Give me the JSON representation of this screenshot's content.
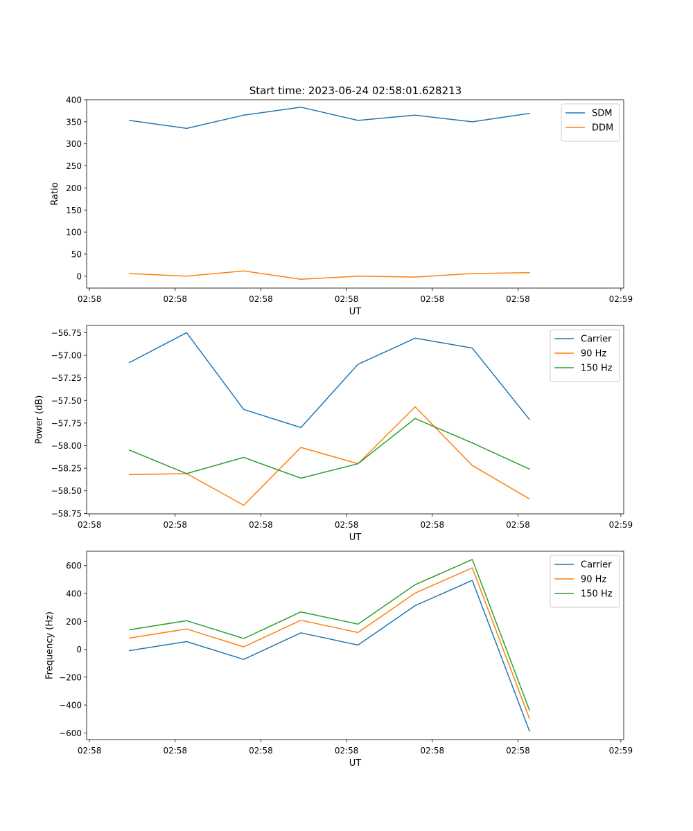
{
  "figure": {
    "title": "Start time: 2023-06-24 02:58:01.628213"
  },
  "chart_data": [
    {
      "type": "line",
      "title": "Start time: 2023-06-24 02:58:01.628213",
      "xlabel": "UT",
      "ylabel": "Ratio",
      "x": [
        0,
        1,
        2,
        3,
        4,
        5,
        6,
        7
      ],
      "xlim": [
        -0.75,
        8.65
      ],
      "x_tick_labels": [
        "02:58",
        "02:58",
        "02:58",
        "02:58",
        "02:58",
        "02:58",
        "02:59"
      ],
      "ylim": [
        -27,
        400
      ],
      "y_ticks": [
        0,
        50,
        100,
        150,
        200,
        250,
        300,
        350,
        400
      ],
      "y_tick_labels": [
        "0",
        "50",
        "100",
        "150",
        "200",
        "250",
        "300",
        "350",
        "400"
      ],
      "legend_position": "top-right",
      "grid": false,
      "series": [
        {
          "name": "SDM",
          "color": "#1f77b4",
          "values": [
            353,
            335,
            365,
            383,
            353,
            365,
            350,
            369
          ]
        },
        {
          "name": "DDM",
          "color": "#ff7f0e",
          "values": [
            6,
            0,
            12,
            -7,
            0,
            -2,
            6,
            8
          ]
        }
      ]
    },
    {
      "type": "line",
      "title": "",
      "xlabel": "UT",
      "ylabel": "Power (dB)",
      "x": [
        0,
        1,
        2,
        3,
        4,
        5,
        6,
        7
      ],
      "xlim": [
        -0.75,
        8.65
      ],
      "x_tick_labels": [
        "02:58",
        "02:58",
        "02:58",
        "02:58",
        "02:58",
        "02:58",
        "02:59"
      ],
      "ylim": [
        -58.755,
        -56.67
      ],
      "y_ticks": [
        -58.75,
        -58.5,
        -58.25,
        -58.0,
        -57.75,
        -57.5,
        -57.25,
        -57.0,
        -56.75
      ],
      "y_tick_labels": [
        "−58.75",
        "−58.50",
        "−58.25",
        "−58.00",
        "−57.75",
        "−57.50",
        "−57.25",
        "−57.00",
        "−56.75"
      ],
      "legend_position": "top-right",
      "grid": false,
      "series": [
        {
          "name": "Carrier",
          "color": "#1f77b4",
          "values": [
            -57.08,
            -56.75,
            -57.6,
            -57.8,
            -57.1,
            -56.81,
            -56.92,
            -57.71
          ]
        },
        {
          "name": "90 Hz",
          "color": "#ff7f0e",
          "values": [
            -58.32,
            -58.31,
            -58.66,
            -58.02,
            -58.2,
            -57.57,
            -58.22,
            -58.59
          ]
        },
        {
          "name": "150 Hz",
          "color": "#2ca02c",
          "values": [
            -58.05,
            -58.31,
            -58.13,
            -58.36,
            -58.2,
            -57.7,
            -57.97,
            -58.26
          ]
        }
      ]
    },
    {
      "type": "line",
      "title": "",
      "xlabel": "UT",
      "ylabel": "Frequency (Hz)",
      "x": [
        0,
        1,
        2,
        3,
        4,
        5,
        6,
        7
      ],
      "xlim": [
        -0.75,
        8.65
      ],
      "x_tick_labels": [
        "02:58",
        "02:58",
        "02:58",
        "02:58",
        "02:58",
        "02:58",
        "02:59"
      ],
      "ylim": [
        -648,
        703
      ],
      "y_ticks": [
        -600,
        -400,
        -200,
        0,
        200,
        400,
        600
      ],
      "y_tick_labels": [
        "−600",
        "−400",
        "−200",
        "0",
        "200",
        "400",
        "600"
      ],
      "legend_position": "top-right",
      "grid": false,
      "series": [
        {
          "name": "Carrier",
          "color": "#1f77b4",
          "values": [
            -10,
            55,
            -73,
            118,
            30,
            313,
            494,
            -587
          ]
        },
        {
          "name": "90 Hz",
          "color": "#ff7f0e",
          "values": [
            80,
            145,
            17,
            208,
            120,
            403,
            584,
            -497
          ]
        },
        {
          "name": "150 Hz",
          "color": "#2ca02c",
          "values": [
            140,
            205,
            77,
            268,
            180,
            463,
            644,
            -437
          ]
        }
      ]
    }
  ]
}
